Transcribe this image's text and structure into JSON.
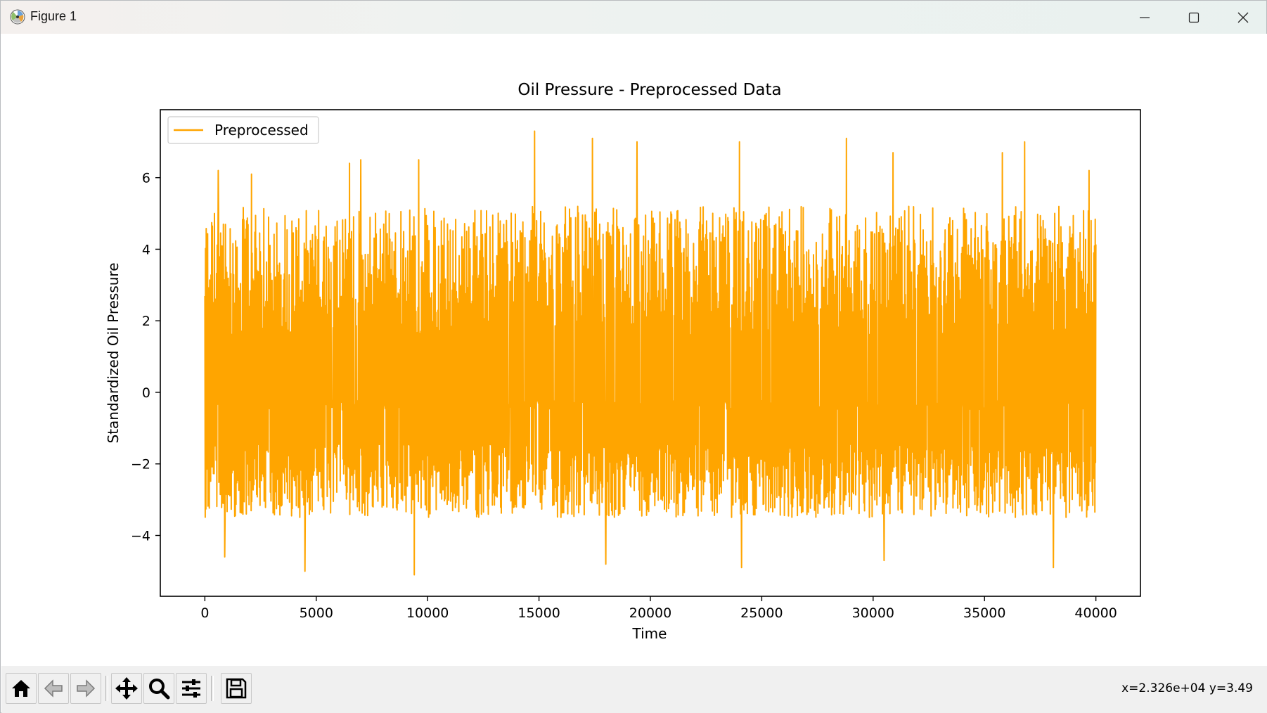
{
  "window": {
    "title": "Figure 1",
    "controls": {
      "minimize": "minimize-icon",
      "maximize": "maximize-icon",
      "close": "close-icon"
    }
  },
  "toolbar": {
    "buttons": [
      {
        "name": "home",
        "icon": "home-icon"
      },
      {
        "name": "back",
        "icon": "arrow-left-icon"
      },
      {
        "name": "forward",
        "icon": "arrow-right-icon"
      },
      {
        "name": "pan",
        "icon": "move-icon"
      },
      {
        "name": "zoom",
        "icon": "magnifier-icon"
      },
      {
        "name": "configure-subplots",
        "icon": "sliders-icon"
      },
      {
        "name": "save",
        "icon": "floppy-disk-icon"
      }
    ],
    "coordinates": "x=2.326e+04 y=3.49"
  },
  "chart_data": {
    "type": "line",
    "title": "Oil Pressure - Preprocessed Data",
    "xlabel": "Time",
    "ylabel": "Standardized Oil Pressure",
    "xlim": [
      -2000,
      42000
    ],
    "ylim": [
      -5.7,
      7.9
    ],
    "xticks": [
      0,
      5000,
      10000,
      15000,
      20000,
      25000,
      30000,
      35000,
      40000
    ],
    "xtick_labels": [
      "0",
      "5000",
      "10000",
      "15000",
      "20000",
      "25000",
      "30000",
      "35000",
      "40000"
    ],
    "yticks": [
      -4,
      -2,
      0,
      2,
      4,
      6
    ],
    "ytick_labels": [
      "−4",
      "−2",
      "0",
      "2",
      "4",
      "6"
    ],
    "grid": false,
    "legend_position": "upper left",
    "colors": {
      "series": "#ffa500",
      "axes": "#000000"
    },
    "series": [
      {
        "name": "Preprocessed",
        "color": "#ffa500",
        "x_range": [
          0,
          40000
        ],
        "baseline": -0.35,
        "typical_range": [
          -3.5,
          5.2
        ],
        "min": -5.1,
        "max": 7.3,
        "peaks": [
          {
            "x": 600,
            "y": 6.2
          },
          {
            "x": 2100,
            "y": 6.1
          },
          {
            "x": 6500,
            "y": 6.4
          },
          {
            "x": 7000,
            "y": 6.5
          },
          {
            "x": 9600,
            "y": 6.5
          },
          {
            "x": 14800,
            "y": 7.3
          },
          {
            "x": 17400,
            "y": 7.1
          },
          {
            "x": 19400,
            "y": 7.0
          },
          {
            "x": 24000,
            "y": 7.0
          },
          {
            "x": 28800,
            "y": 7.1
          },
          {
            "x": 30900,
            "y": 6.7
          },
          {
            "x": 35800,
            "y": 6.7
          },
          {
            "x": 36800,
            "y": 7.0
          },
          {
            "x": 39700,
            "y": 6.2
          }
        ],
        "troughs": [
          {
            "x": 900,
            "y": -4.6
          },
          {
            "x": 4500,
            "y": -5.0
          },
          {
            "x": 9400,
            "y": -5.1
          },
          {
            "x": 18000,
            "y": -4.8
          },
          {
            "x": 24100,
            "y": -4.9
          },
          {
            "x": 30500,
            "y": -4.7
          },
          {
            "x": 38100,
            "y": -4.9
          }
        ]
      }
    ]
  }
}
